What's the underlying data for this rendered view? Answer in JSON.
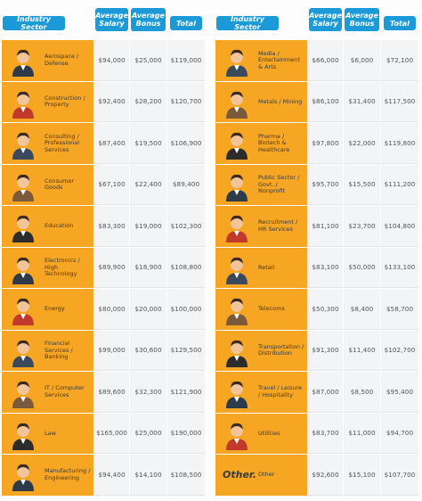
{
  "header": [
    "Industry Sector",
    "Average Salary",
    "Average Bonus",
    "Total"
  ],
  "left_rows": [
    [
      "Aerospace / Defense",
      "$94,000",
      "$25,000",
      "$119,000"
    ],
    [
      "Construction / Property",
      "$92,400",
      "$28,200",
      "$120,700"
    ],
    [
      "Consulting / Professional Services",
      "$87,400",
      "$19,500",
      "$106,900"
    ],
    [
      "Consumer Goods",
      "$67,100",
      "$22,400",
      "$89,400"
    ],
    [
      "Education",
      "$83,300",
      "$19,000",
      "$102,300"
    ],
    [
      "Electronics / High Technology",
      "$89,900",
      "$18,900",
      "$108,800"
    ],
    [
      "Energy",
      "$80,000",
      "$20,000",
      "$100,000"
    ],
    [
      "Financial Services / Banking",
      "$99,000",
      "$30,600",
      "$129,500"
    ],
    [
      "IT / Computer Services",
      "$89,600",
      "$32,300",
      "$121,900"
    ],
    [
      "Law",
      "$165,000",
      "$25,000",
      "$190,000"
    ],
    [
      "Manufacturing / Engineering",
      "$94,400",
      "$14,100",
      "$108,500"
    ]
  ],
  "right_rows": [
    [
      "Media / Entertainment & Arts",
      "$66,000",
      "$6,000",
      "$72,100"
    ],
    [
      "Metals / Mining",
      "$86,100",
      "$31,400",
      "$117,500"
    ],
    [
      "Pharma / Biotech & Healthcare",
      "$97,800",
      "$22,000",
      "$119,800"
    ],
    [
      "Public Sector / Govt. / Nonprofit",
      "$95,700",
      "$15,500",
      "$111,200"
    ],
    [
      "Recruitment / HR Services",
      "$81,100",
      "$23,700",
      "$104,800"
    ],
    [
      "Retail",
      "$83,100",
      "$50,000",
      "$133,100"
    ],
    [
      "Telecoms",
      "$50,300",
      "$8,400",
      "$58,700"
    ],
    [
      "Transportation / Distribution",
      "$91,300",
      "$11,400",
      "$102,700"
    ],
    [
      "Travel / Leisure / Hospitality",
      "$87,000",
      "$8,500",
      "$95,400"
    ],
    [
      "Utilities",
      "$83,700",
      "$11,000",
      "$94,700"
    ],
    [
      "Other",
      "$92,600",
      "$15,100",
      "$107,700"
    ]
  ],
  "other_icon_text": "Other."
}
